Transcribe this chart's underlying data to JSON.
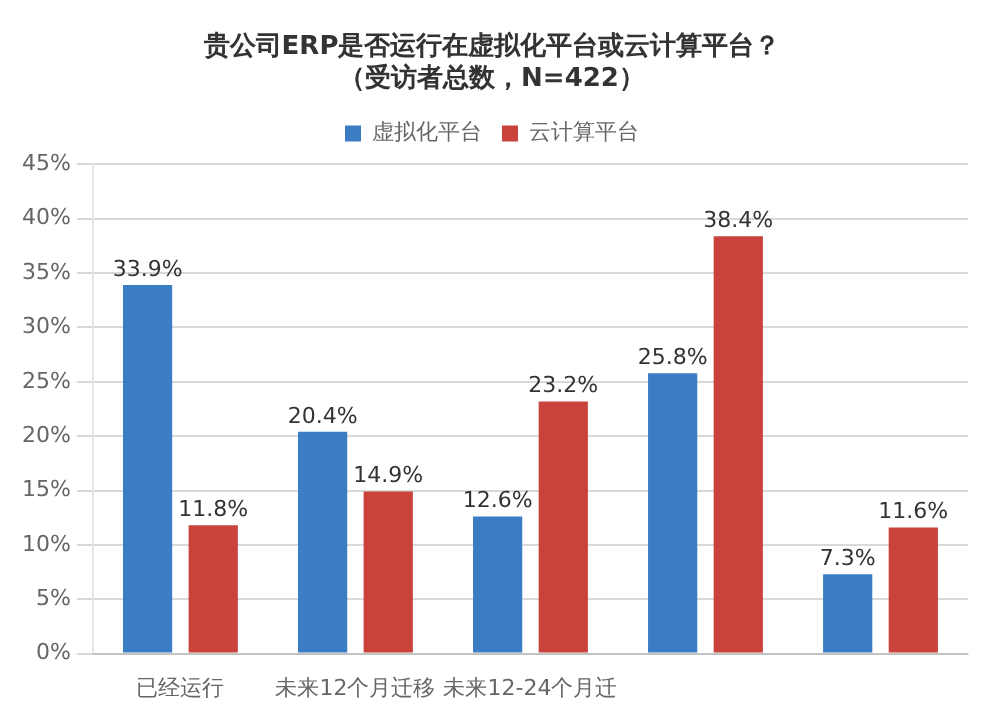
{
  "chart_data": {
    "type": "bar",
    "title": "贵公司ERP是否运行在虚拟化平台或云计算平台？",
    "subtitle": "（受访者总数，N=422）",
    "categories": [
      "已经运行",
      "未来12个月迁移",
      "未来12-24个月迁",
      null,
      null
    ],
    "series": [
      {
        "name": "虚拟化平台",
        "color": "#3b7dc4",
        "values": [
          33.9,
          20.4,
          12.6,
          25.8,
          7.3
        ],
        "value_labels": [
          "33.9%",
          "20.4%",
          "12.6%",
          "25.8%",
          "7.3%"
        ]
      },
      {
        "name": "云计算平台",
        "color": "#c9423c",
        "values": [
          11.8,
          14.9,
          23.2,
          38.4,
          11.6
        ],
        "value_labels": [
          "11.8%",
          "14.9%",
          "23.2%",
          "38.4%",
          "11.6%"
        ]
      }
    ],
    "ylim": [
      0,
      45
    ],
    "yticks": [
      {
        "value": 0,
        "label": "0%"
      },
      {
        "value": 5,
        "label": "5%"
      },
      {
        "value": 10,
        "label": "10%"
      },
      {
        "value": 15,
        "label": "15%"
      },
      {
        "value": 20,
        "label": "20%"
      },
      {
        "value": 25,
        "label": "25%"
      },
      {
        "value": 30,
        "label": "30%"
      },
      {
        "value": 35,
        "label": "35%"
      },
      {
        "value": 40,
        "label": "40%"
      },
      {
        "value": 45,
        "label": "45%"
      }
    ],
    "grid": "y",
    "legend": "top"
  }
}
